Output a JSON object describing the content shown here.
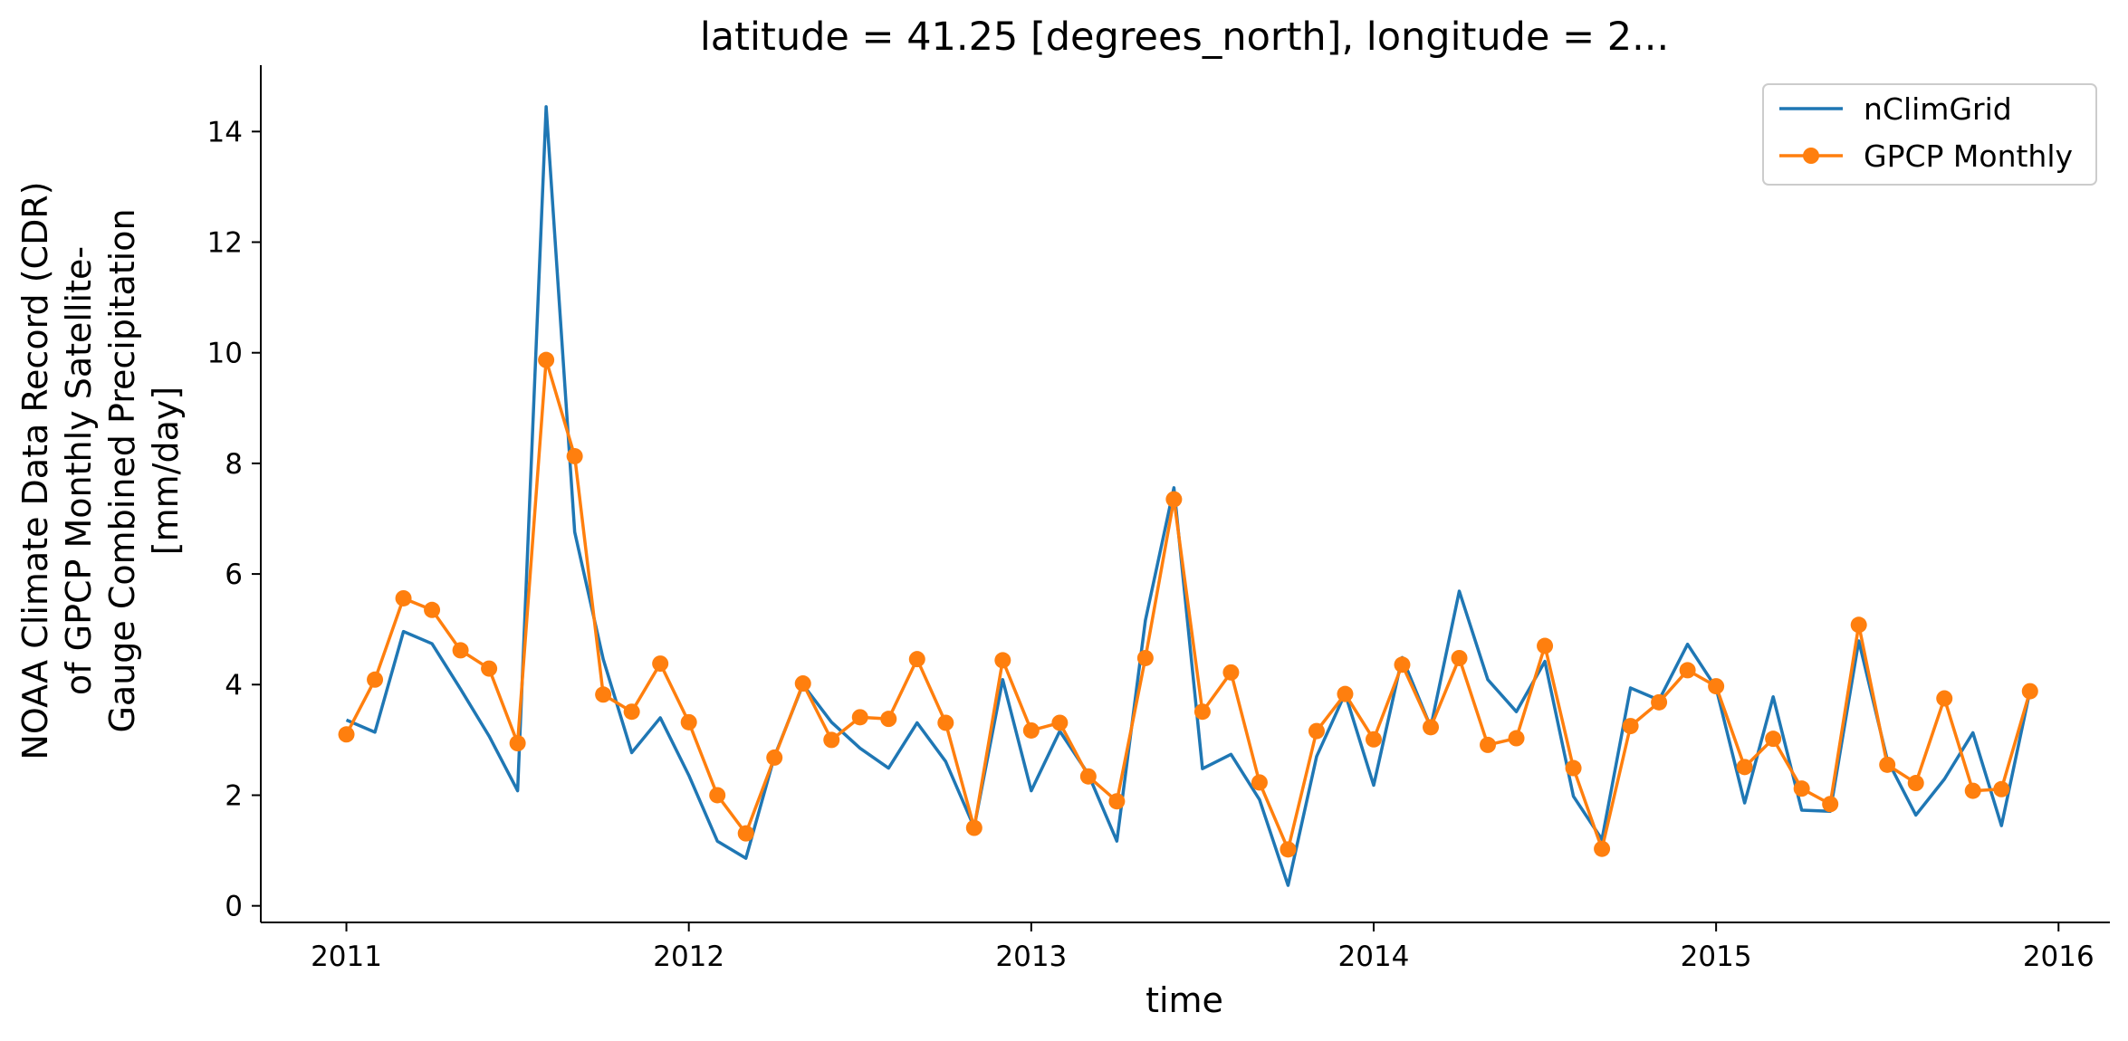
{
  "chart_data": {
    "type": "line",
    "title": "latitude = 41.25 [degrees_north], longitude = 2...",
    "xlabel": "time",
    "ylabel_lines": [
      "NOAA Climate Data Record (CDR)",
      "of GPCP Monthly Satellite-",
      "Gauge Combined Precipitation",
      "[mm/day]"
    ],
    "xlim": [
      2010.75,
      2016.15
    ],
    "ylim": [
      -0.3,
      15.2
    ],
    "x_ticks": [
      2011,
      2012,
      2013,
      2014,
      2015,
      2016
    ],
    "x_tick_labels": [
      "2011",
      "2012",
      "2013",
      "2014",
      "2015",
      "2016"
    ],
    "y_ticks": [
      0,
      2,
      4,
      6,
      8,
      10,
      12,
      14
    ],
    "y_tick_labels": [
      "0",
      "2",
      "4",
      "6",
      "8",
      "10",
      "12",
      "14"
    ],
    "grid": false,
    "legend_position": "top-right",
    "x_start": "2011-01",
    "x_step": "1 month",
    "series": [
      {
        "name": "nClimGrid",
        "color": "#1f77b4",
        "marker": "none",
        "values": [
          3.36,
          3.14,
          4.96,
          4.74,
          3.92,
          3.07,
          2.08,
          14.45,
          6.76,
          4.46,
          2.77,
          3.4,
          2.36,
          1.17,
          0.86,
          2.7,
          4.0,
          3.32,
          2.85,
          2.49,
          3.31,
          2.61,
          1.42,
          4.09,
          2.08,
          3.16,
          2.38,
          1.17,
          5.16,
          7.56,
          2.48,
          2.74,
          1.92,
          0.37,
          2.7,
          3.84,
          2.18,
          4.49,
          3.23,
          5.69,
          4.09,
          3.51,
          4.42,
          1.98,
          1.2,
          3.94,
          3.72,
          4.73,
          3.94,
          1.86,
          3.78,
          1.73,
          1.71,
          4.79,
          2.64,
          1.64,
          2.29,
          3.13,
          1.45,
          3.89
        ]
      },
      {
        "name": "GPCP Monthly",
        "color": "#ff7f0e",
        "marker": "circle",
        "values": [
          3.1,
          4.09,
          5.56,
          5.35,
          4.62,
          4.29,
          2.94,
          9.87,
          8.13,
          3.82,
          3.51,
          4.38,
          3.32,
          2.0,
          1.31,
          2.68,
          4.02,
          3.0,
          3.41,
          3.38,
          4.46,
          3.31,
          1.41,
          4.44,
          3.17,
          3.31,
          2.34,
          1.89,
          4.48,
          7.35,
          3.51,
          4.22,
          2.23,
          1.02,
          3.16,
          3.83,
          3.01,
          4.36,
          3.23,
          4.48,
          2.91,
          3.03,
          4.7,
          2.49,
          1.03,
          3.25,
          3.68,
          4.26,
          3.97,
          2.51,
          3.02,
          2.12,
          1.84,
          5.08,
          2.55,
          2.22,
          3.75,
          2.08,
          2.11,
          3.88
        ]
      }
    ]
  }
}
